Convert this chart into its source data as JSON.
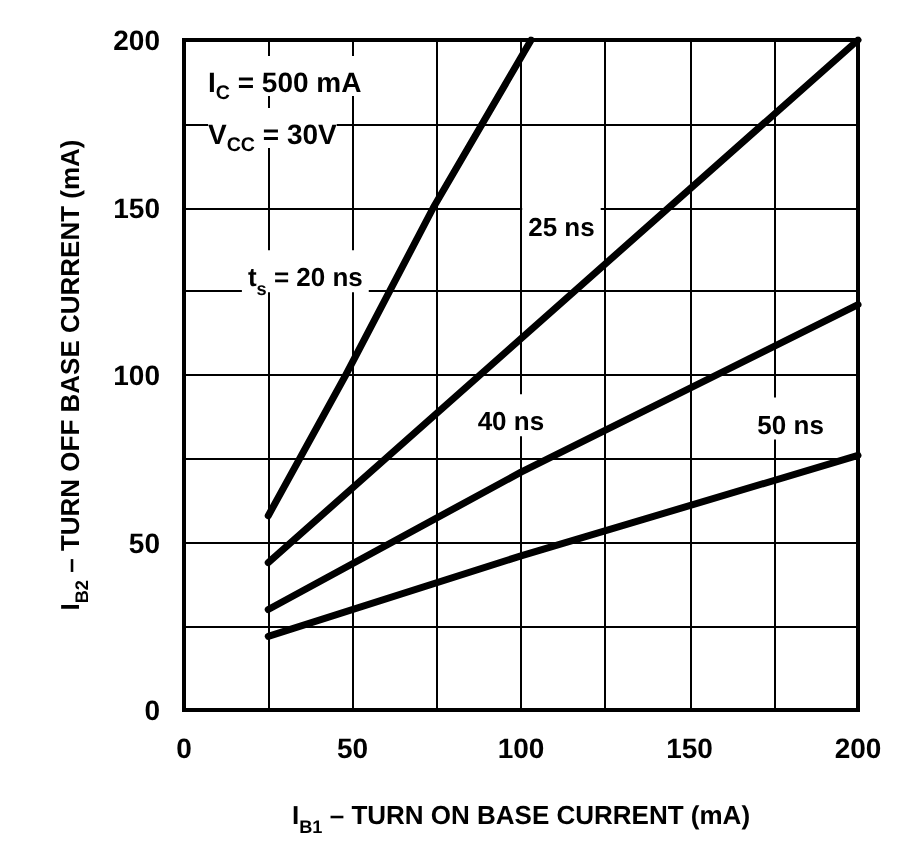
{
  "chart_data": {
    "type": "line",
    "xlabel": "I$_{B1}$ – TURN ON BASE CURRENT (mA)",
    "ylabel": "I$_{B2}$ – TURN OFF BASE CURRENT (mA)",
    "annotations": [
      "I$_{C}$ = 500 mA",
      "V$_{CC}$ = 30V"
    ],
    "series": [
      {
        "name": "t$_{s}$ = 20 ns",
        "color": "#000000",
        "x": [
          25,
          48,
          74,
          103
        ],
        "values": [
          58,
          100,
          150,
          200
        ]
      },
      {
        "name": "25 ns",
        "color": "#000000",
        "x": [
          25,
          200
        ],
        "values": [
          44,
          200
        ]
      },
      {
        "name": "40 ns",
        "color": "#000000",
        "x": [
          25,
          100,
          200
        ],
        "values": [
          30,
          71,
          121
        ]
      },
      {
        "name": "50 ns",
        "color": "#000000",
        "x": [
          25,
          100,
          200
        ],
        "values": [
          22,
          46,
          76
        ]
      }
    ],
    "xlim": [
      0,
      200
    ],
    "ylim": [
      0,
      200
    ],
    "xticks": [
      0,
      {
        "value": 25,
        "label": null
      },
      50,
      {
        "value": 75,
        "label": null
      },
      100,
      {
        "value": 125,
        "label": null
      },
      150,
      {
        "value": 175,
        "label": null
      },
      200
    ],
    "yticks": [
      0,
      {
        "value": 25,
        "label": null
      },
      50,
      {
        "value": 75,
        "label": null
      },
      100,
      {
        "value": 125,
        "label": null
      },
      150,
      {
        "value": 175,
        "label": null
      },
      200
    ],
    "grid": true,
    "legend": false,
    "marker": "none",
    "line_style": "solid"
  }
}
